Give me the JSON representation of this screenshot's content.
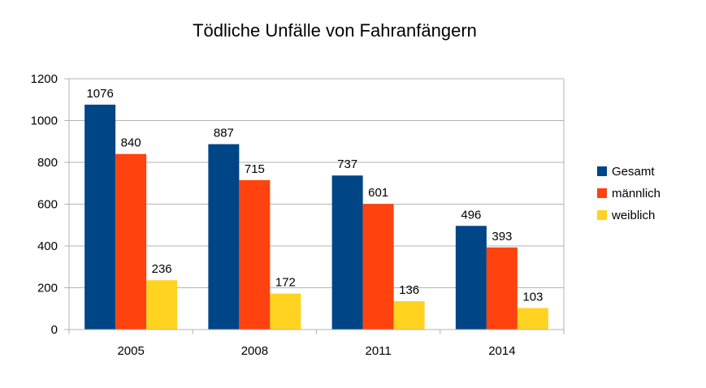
{
  "chart_data": {
    "type": "bar",
    "title": "Tödliche Unfälle von Fahranfängern",
    "xlabel": "",
    "ylabel": "",
    "categories": [
      "2005",
      "2008",
      "2011",
      "2014"
    ],
    "series": [
      {
        "name": "Gesamt",
        "values": [
          1076,
          887,
          737,
          496
        ],
        "color": "#004586"
      },
      {
        "name": "männlich",
        "values": [
          840,
          715,
          601,
          393
        ],
        "color": "#ff420e"
      },
      {
        "name": "weiblich",
        "values": [
          236,
          172,
          136,
          103
        ],
        "color": "#ffd320"
      }
    ],
    "ylim": [
      0,
      1200
    ],
    "yticks": [
      0,
      200,
      400,
      600,
      800,
      1000,
      1200
    ],
    "grid": true,
    "legend": "right"
  }
}
